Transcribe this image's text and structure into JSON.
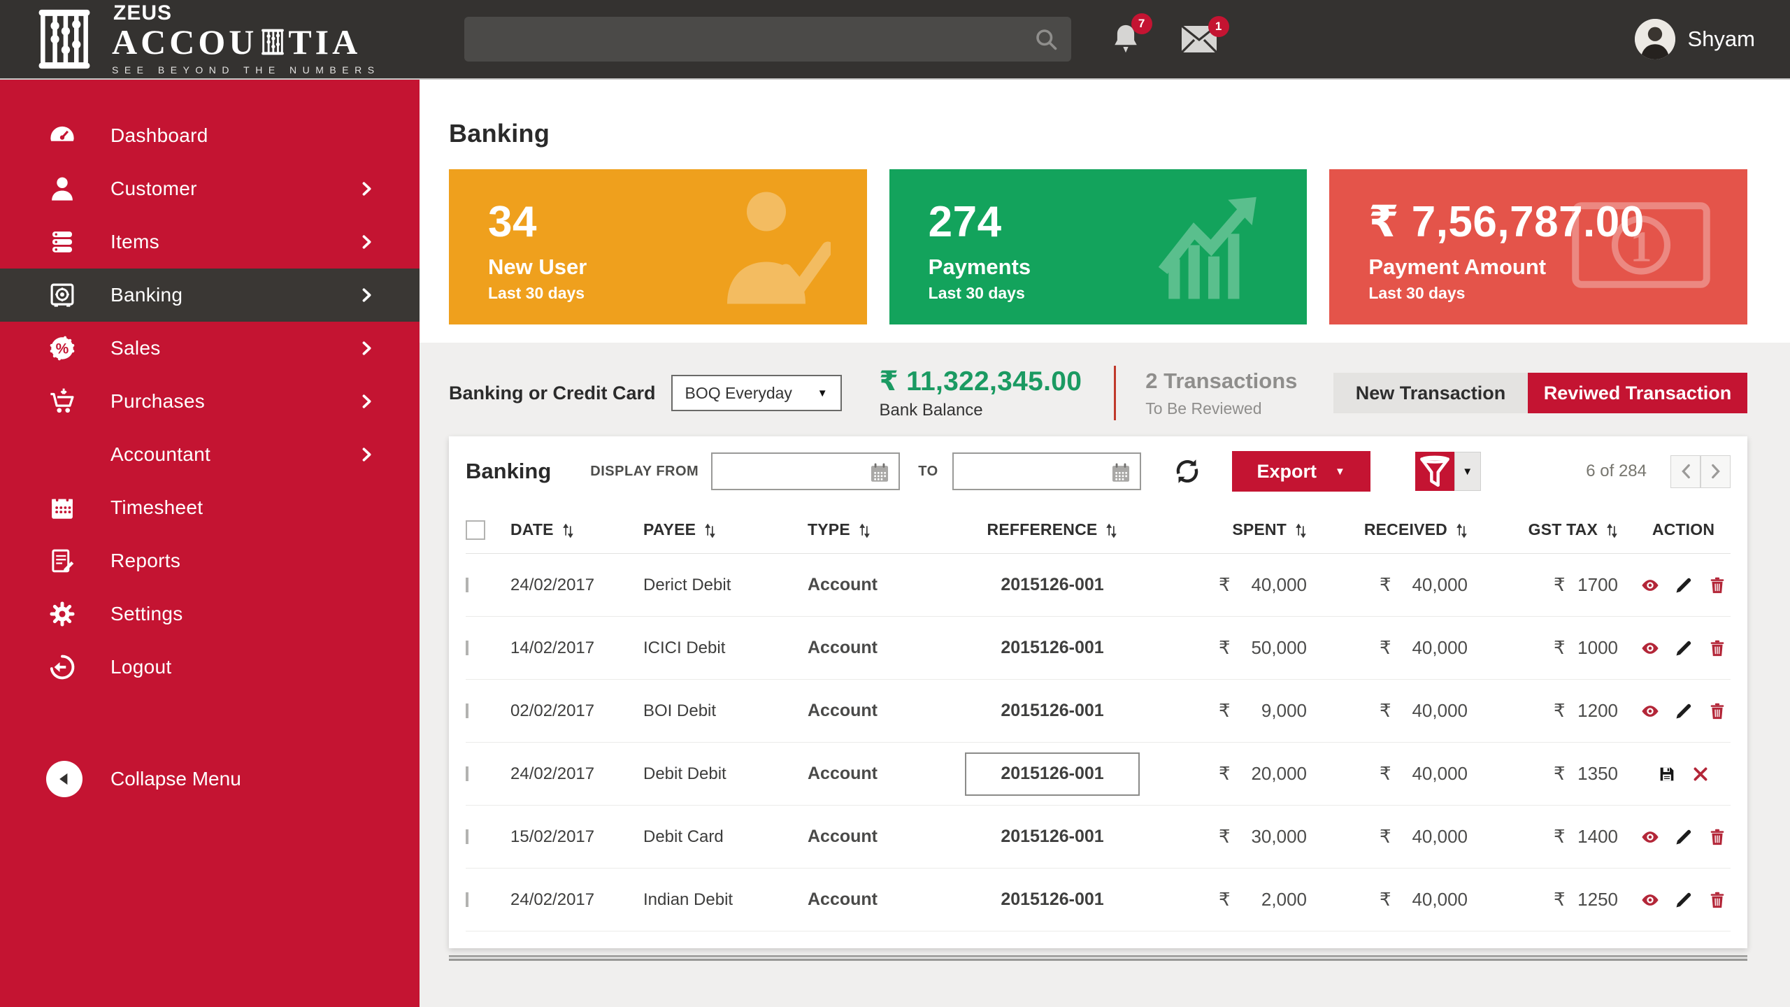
{
  "colors": {
    "accent_red": "#c41432",
    "topbar_dark": "#343230",
    "active_dark": "#3a3734",
    "green_text": "#1b9a62",
    "icon_red": "#b32638"
  },
  "topbar": {
    "logo": {
      "brand_top": "ZEUS",
      "brand_left": "ACCOU",
      "brand_right": "TIA",
      "tagline": "SEE BEYOND THE NUMBERS",
      "icon": "abacus-icon"
    },
    "search": {
      "placeholder": "",
      "icon": "search-icon"
    },
    "notifications": {
      "icon": "bell-icon",
      "count": "7"
    },
    "messages": {
      "icon": "mail-icon",
      "count": "1"
    },
    "user": {
      "name": "Shyam",
      "avatar": "avatar"
    }
  },
  "sidebar": {
    "items": [
      {
        "label": "Dashboard",
        "icon": "gauge-icon",
        "chevron": false,
        "active": false
      },
      {
        "label": "Customer",
        "icon": "user-icon",
        "chevron": true,
        "active": false
      },
      {
        "label": "Items",
        "icon": "stack-icon",
        "chevron": true,
        "active": false
      },
      {
        "label": "Banking",
        "icon": "safe-icon",
        "chevron": true,
        "active": true
      },
      {
        "label": "Sales",
        "icon": "discount-icon",
        "chevron": true,
        "active": false
      },
      {
        "label": "Purchases",
        "icon": "cart-icon",
        "chevron": true,
        "active": false
      },
      {
        "label": "Accountant",
        "icon": "abacus-icon",
        "chevron": true,
        "active": false
      },
      {
        "label": "Timesheet",
        "icon": "calendar-icon",
        "chevron": false,
        "active": false
      },
      {
        "label": "Reports",
        "icon": "report-icon",
        "chevron": false,
        "active": false
      },
      {
        "label": "Settings",
        "icon": "gear-icon",
        "chevron": false,
        "active": false
      },
      {
        "label": "Logout",
        "icon": "logout-icon",
        "chevron": false,
        "active": false
      }
    ],
    "collapse_label": "Collapse Menu"
  },
  "page": {
    "title": "Banking"
  },
  "cards": [
    {
      "value": "34",
      "label": "New User",
      "sub": "Last 30 days",
      "color": "#efa01d",
      "icon": "user-check-icon"
    },
    {
      "value": "274",
      "label": "Payments",
      "sub": "Last 30 days",
      "color": "#13a35c",
      "icon": "chart-up-icon"
    },
    {
      "value": "₹ 7,56,787.00",
      "label": "Payment Amount",
      "sub": "Last 30 days",
      "color": "#e4544a",
      "icon": "banknote-icon"
    }
  ],
  "account_row": {
    "label": "Banking or Credit Card",
    "dropdown_value": "BOQ Everyday",
    "balance_value": "₹ 11,322,345.00",
    "balance_label": "Bank Balance",
    "transactions_value": "2 Transactions",
    "transactions_sub": "To Be Reviewed",
    "new_transaction_label": "New Transaction",
    "reviewed_transaction_label": "Reviwed Transaction"
  },
  "panel": {
    "title": "Banking",
    "display_from_label": "DISPLAY FROM",
    "to_label": "TO",
    "date_from_value": "",
    "date_to_value": "",
    "export_label": "Export",
    "page_count": "6 of 284"
  },
  "table": {
    "currency": "₹",
    "columns": [
      "DATE",
      "PAYEE",
      "TYPE",
      "REFFERENCE",
      "SPENT",
      "RECEIVED",
      "GST TAX",
      "ACTION"
    ],
    "rows": [
      {
        "date": "24/02/2017",
        "payee": "Derict Debit",
        "type": "Account",
        "reference": "2015126-001",
        "spent": "40,000",
        "received": "40,000",
        "gst": "1700",
        "editing": false
      },
      {
        "date": "14/02/2017",
        "payee": "ICICI Debit",
        "type": "Account",
        "reference": "2015126-001",
        "spent": "50,000",
        "received": "40,000",
        "gst": "1000",
        "editing": false
      },
      {
        "date": "02/02/2017",
        "payee": "BOI Debit",
        "type": "Account",
        "reference": "2015126-001",
        "spent": "9,000",
        "received": "40,000",
        "gst": "1200",
        "editing": false
      },
      {
        "date": "24/02/2017",
        "payee": "Debit Debit",
        "type": "Account",
        "reference": "2015126-001",
        "spent": "20,000",
        "received": "40,000",
        "gst": "1350",
        "editing": true
      },
      {
        "date": "15/02/2017",
        "payee": "Debit Card",
        "type": "Account",
        "reference": "2015126-001",
        "spent": "30,000",
        "received": "40,000",
        "gst": "1400",
        "editing": false
      },
      {
        "date": "24/02/2017",
        "payee": "Indian Debit",
        "type": "Account",
        "reference": "2015126-001",
        "spent": "2,000",
        "received": "40,000",
        "gst": "1250",
        "editing": false
      }
    ]
  }
}
